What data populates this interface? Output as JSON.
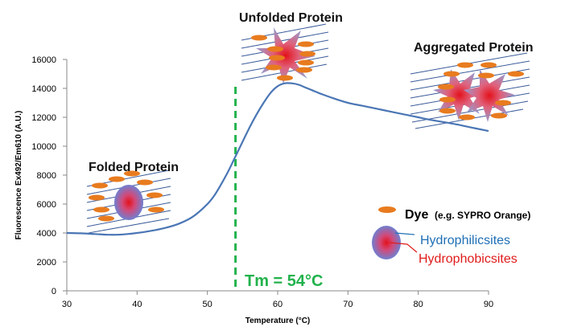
{
  "colors": {
    "curve": "#4a76b5",
    "tm_line": "#22b24c",
    "dye": "#e87b1e",
    "hydrophilic": "#1f6fb5",
    "hydrophobic": "#e01b1b",
    "hatch": "#3b5b9a"
  },
  "chart_data": {
    "type": "line",
    "title": "",
    "xlabel": "Temperature (°C)",
    "ylabel": "Fluorescence Ex492/Em610 (A.U.)",
    "xlim": [
      30,
      90
    ],
    "ylim": [
      0,
      16000
    ],
    "x_ticks": [
      30,
      40,
      50,
      60,
      70,
      80,
      90
    ],
    "y_ticks": [
      0,
      2000,
      4000,
      6000,
      8000,
      10000,
      12000,
      14000,
      16000
    ],
    "grid": false,
    "series": [
      {
        "x": [
          30,
          32,
          34,
          36,
          38,
          40,
          42,
          44,
          46,
          48,
          50,
          51,
          52,
          53,
          54,
          55,
          56,
          57,
          58,
          59,
          60,
          61,
          62,
          63,
          64,
          65,
          66,
          68,
          70,
          72,
          75,
          78,
          80,
          82,
          85,
          88,
          90
        ],
        "y": [
          4000,
          3980,
          3930,
          3880,
          3900,
          4000,
          4150,
          4350,
          4650,
          5150,
          6000,
          6600,
          7400,
          8300,
          9300,
          10300,
          11300,
          12200,
          13000,
          13700,
          14150,
          14350,
          14350,
          14250,
          14050,
          13850,
          13650,
          13300,
          13000,
          12800,
          12500,
          12200,
          12000,
          11800,
          11550,
          11250,
          11050
        ]
      }
    ],
    "tm_line": {
      "x": 54,
      "label": "Tm = 54°C"
    },
    "annotations": {
      "folded": "Folded Protein",
      "unfolded": "Unfolded Protein",
      "aggregated": "Aggregated Protein"
    },
    "legend": {
      "dye_label": "Dye",
      "dye_example": "(e.g. SYPRO Orange)",
      "hydrophilic_label": "Hydrophilicsites",
      "hydrophobic_label": "Hydrophobicsites"
    }
  }
}
